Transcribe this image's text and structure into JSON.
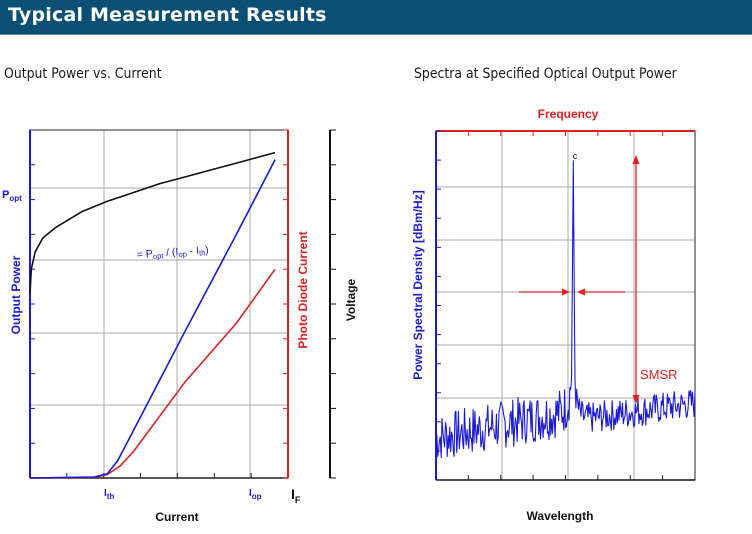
{
  "header": {
    "title": "Typical Measurement Results"
  },
  "colors": {
    "banner": "#0b4f74",
    "blue": "#1a1ad6",
    "red": "#e02020",
    "black": "#111111",
    "grid": "#a8a8a8"
  },
  "chart_data": [
    {
      "type": "line",
      "title": "Output Power vs. Current",
      "xlabel": "Current",
      "ylabel_left": "Output Power",
      "ylabel_right_1": "Photo Diode Current",
      "ylabel_right_2": "Voltage",
      "x_tick_labels": {
        "threshold_main": "I",
        "threshold_sub": "th",
        "operating_main": "I",
        "operating_sub": "op",
        "axis_main": "I",
        "axis_sub": "F"
      },
      "y_tick_label": {
        "main": "P",
        "sub": "opt"
      },
      "annotation": "= P_opt / (I_op - I_th)",
      "annotation_parts": {
        "eq": "= P",
        "sub1": "opt",
        "mid": " / (I",
        "sub2": "op",
        "dash": " - I",
        "sub3": "th",
        "end": ")"
      },
      "grid": true,
      "xlim": [
        0,
        1
      ],
      "ylim": [
        0,
        1
      ],
      "series": [
        {
          "name": "Output Power",
          "color": "#1a1ad6",
          "x": [
            0,
            0.25,
            0.3,
            0.34,
            0.4,
            0.6,
            0.8,
            0.95
          ],
          "y": [
            0,
            0.003,
            0.012,
            0.05,
            0.135,
            0.42,
            0.7,
            0.915
          ]
        },
        {
          "name": "Photo Diode Current",
          "color": "#e02020",
          "x": [
            0,
            0.25,
            0.3,
            0.35,
            0.4,
            0.6,
            0.8,
            0.95
          ],
          "y": [
            0,
            0.002,
            0.01,
            0.035,
            0.075,
            0.275,
            0.445,
            0.6
          ]
        },
        {
          "name": "Voltage",
          "color": "#111111",
          "x": [
            0,
            0.005,
            0.02,
            0.05,
            0.1,
            0.2,
            0.3,
            0.4,
            0.5,
            0.6,
            0.7,
            0.8,
            0.95
          ],
          "y": [
            0.53,
            0.6,
            0.65,
            0.69,
            0.72,
            0.765,
            0.795,
            0.82,
            0.845,
            0.865,
            0.885,
            0.905,
            0.935
          ]
        }
      ]
    },
    {
      "type": "line",
      "title": "Spectra at Specified Optical Output Power",
      "top_label": "Frequency",
      "xlabel": "Wavelength",
      "ylabel": "Power Spectral Density [dBm/Hz]",
      "annotations": {
        "peak": "c",
        "smsr": "SMSR"
      },
      "grid": true,
      "xlim": [
        0,
        1
      ],
      "ylim": [
        0,
        1
      ],
      "peak": {
        "x": 0.53,
        "y": 0.915
      }
    }
  ]
}
